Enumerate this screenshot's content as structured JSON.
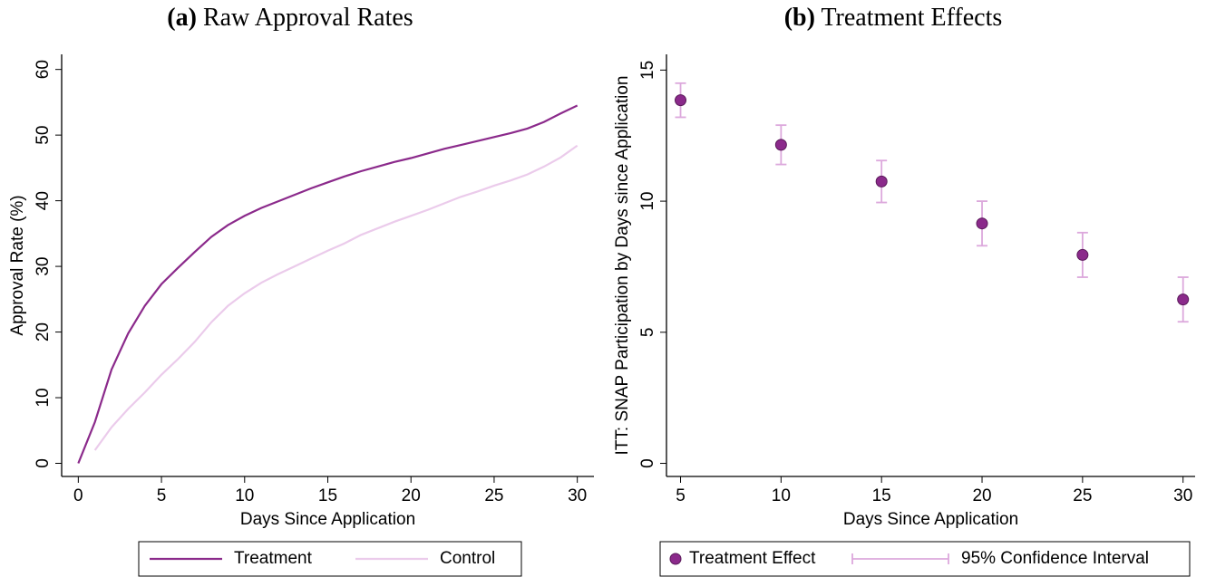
{
  "chart_data": [
    {
      "type": "line",
      "panel": "(a)",
      "title": "Raw Approval Rates",
      "x_label": "Days Since Application",
      "y_label": "Approval Rate (%)",
      "x": [
        0,
        1,
        2,
        3,
        4,
        5,
        6,
        7,
        8,
        9,
        10,
        11,
        12,
        13,
        14,
        15,
        16,
        17,
        18,
        19,
        20,
        21,
        22,
        23,
        24,
        25,
        26,
        27,
        28,
        29,
        30
      ],
      "series": [
        {
          "name": "Treatment",
          "color": "#8b2a8b",
          "values": [
            0,
            6.3,
            14.3,
            19.8,
            24,
            27.3,
            29.8,
            32.2,
            34.5,
            36.3,
            37.7,
            38.9,
            39.9,
            40.9,
            41.9,
            42.8,
            43.7,
            44.5,
            45.2,
            45.9,
            46.5,
            47.2,
            47.9,
            48.5,
            49.1,
            49.7,
            50.3,
            51,
            52,
            53.3,
            54.5
          ]
        },
        {
          "name": "Control",
          "color": "#ebcbeb",
          "values": [
            null,
            2,
            5.5,
            8.3,
            10.8,
            13.5,
            15.9,
            18.5,
            21.5,
            24,
            25.9,
            27.5,
            28.8,
            30,
            31.2,
            32.4,
            33.5,
            34.8,
            35.8,
            36.8,
            37.7,
            38.6,
            39.6,
            40.6,
            41.4,
            42.3,
            43.1,
            44,
            45.2,
            46.6,
            48.4
          ]
        }
      ],
      "xlim": [
        -1,
        31
      ],
      "ylim": [
        -2,
        62.3
      ],
      "xticks": [
        0,
        5,
        10,
        15,
        20,
        25,
        30
      ],
      "yticks": [
        0,
        10,
        20,
        30,
        40,
        50,
        60
      ]
    },
    {
      "type": "errorbar",
      "panel": "(b)",
      "title": "Treatment Effects",
      "x_label": "Days Since Application",
      "y_label": "ITT: SNAP Participation by Days since Application",
      "x": [
        5,
        10,
        15,
        20,
        25,
        30
      ],
      "series": [
        {
          "name": "Treatment Effect",
          "color": "#8b2a8b",
          "values": [
            13.85,
            12.15,
            10.75,
            9.15,
            7.95,
            6.25
          ]
        },
        {
          "name": "95% Confidence Interval",
          "color": "#dca8dc",
          "lower": [
            13.2,
            11.4,
            9.95,
            8.3,
            7.1,
            5.4
          ],
          "upper": [
            14.5,
            12.9,
            11.55,
            10,
            8.8,
            7.1
          ]
        }
      ],
      "xlim": [
        4.3,
        30.6
      ],
      "ylim": [
        -0.5,
        15.6
      ],
      "xticks": [
        5,
        10,
        15,
        20,
        25,
        30
      ],
      "yticks": [
        0,
        5,
        10,
        15
      ]
    }
  ]
}
